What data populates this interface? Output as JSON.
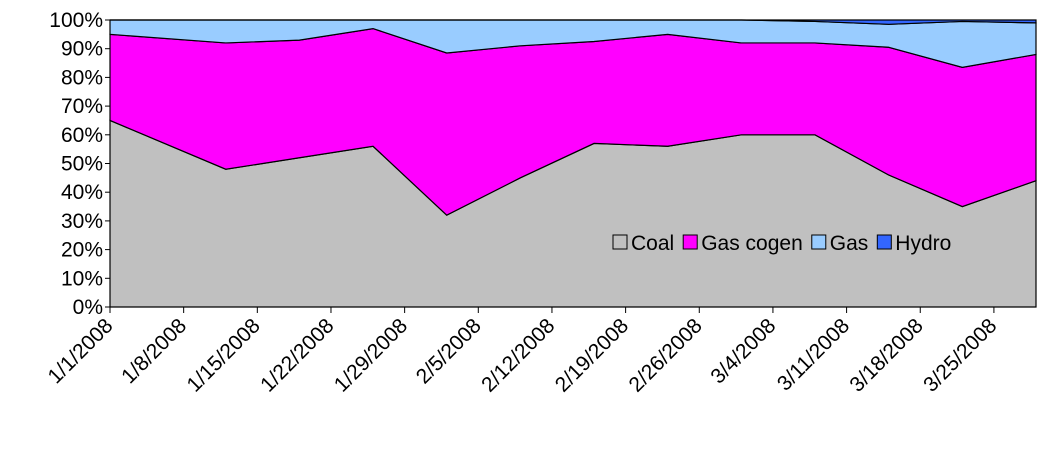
{
  "chart_data": {
    "type": "stacked_area",
    "x": [
      "1/1/2008",
      "1/12/2008",
      "1/19/2008",
      "1/26/2008",
      "2/2/2008",
      "2/9/2008",
      "2/16/2008",
      "2/23/2008",
      "3/1/2008",
      "3/8/2008",
      "3/15/2008",
      "3/22/2008",
      "3/29/2008"
    ],
    "xlim": [
      "1/1/2008",
      "3/29/2008"
    ],
    "xticks": [
      "1/1/2008",
      "1/8/2008",
      "1/15/2008",
      "1/22/2008",
      "1/29/2008",
      "2/5/2008",
      "2/12/2008",
      "2/19/2008",
      "2/26/2008",
      "3/4/2008",
      "3/11/2008",
      "3/18/2008",
      "3/25/2008"
    ],
    "series": [
      {
        "name": "Coal",
        "color": "#c0c0c0",
        "values": [
          65,
          48,
          52,
          56,
          32,
          45,
          57,
          56,
          60,
          60,
          46,
          35,
          44
        ]
      },
      {
        "name": "Gas cogen",
        "color": "#ff00ff",
        "values": [
          30,
          44,
          41,
          41,
          56.5,
          46,
          35.5,
          39,
          32,
          32,
          44.5,
          48.5,
          44
        ]
      },
      {
        "name": "Gas",
        "color": "#99ccff",
        "values": [
          5,
          8,
          7,
          3,
          11.5,
          9,
          7.5,
          5,
          8,
          7.5,
          8,
          16,
          11
        ]
      },
      {
        "name": "Hydro",
        "color": "#3366ff",
        "values": [
          0,
          0,
          0,
          0,
          0,
          0,
          0,
          0,
          0,
          0.5,
          1.5,
          0.5,
          1
        ]
      }
    ],
    "ylim": [
      0,
      100
    ],
    "yticks": [
      {
        "value": 0,
        "label": "0%"
      },
      {
        "value": 10,
        "label": "10%"
      },
      {
        "value": 20,
        "label": "20%"
      },
      {
        "value": 30,
        "label": "30%"
      },
      {
        "value": 40,
        "label": "40%"
      },
      {
        "value": 50,
        "label": "50%"
      },
      {
        "value": 60,
        "label": "60%"
      },
      {
        "value": 70,
        "label": "70%"
      },
      {
        "value": 80,
        "label": "80%"
      },
      {
        "value": 90,
        "label": "90%"
      },
      {
        "value": 100,
        "label": "100%"
      }
    ]
  }
}
